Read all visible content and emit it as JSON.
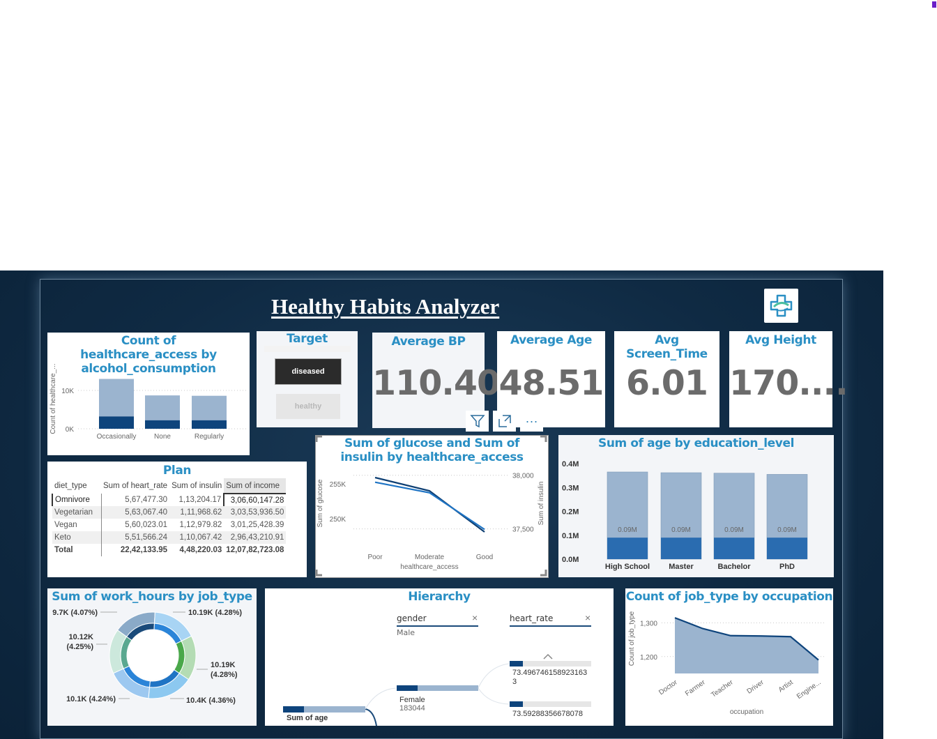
{
  "colors": {
    "accent": "#2a8fc4",
    "bar_light": "#9bb4cf",
    "bar_dark": "#0e447c",
    "bar_mid": "#2a6cb0"
  },
  "dashboard": {
    "title": "Healthy Habits Analyzer",
    "logo_icon": "medical-cross-icon"
  },
  "alcohol_chart": {
    "title": "Count of healthcare_access by alcohol_consumption",
    "y_axis_label": "Count of healthcare_...",
    "y_ticks": [
      "10K",
      "0K"
    ],
    "chart_data": {
      "type": "bar",
      "categories": [
        "Occasionally",
        "None",
        "Regularly"
      ],
      "series": [
        {
          "values": [
            3200,
            2200,
            2200
          ]
        },
        {
          "values": [
            13000,
            8700,
            8600
          ]
        }
      ],
      "ylim": [
        0,
        16000
      ]
    }
  },
  "target_slicer": {
    "title": "Target",
    "options": [
      "diseased",
      "healthy"
    ],
    "selected": "diseased"
  },
  "kpis": [
    {
      "label": "Average BP",
      "value": "110.40"
    },
    {
      "label": "Average Age",
      "value": "48.51"
    },
    {
      "label": "Avg Screen_Time",
      "value": "6.01"
    },
    {
      "label": "Avg Height",
      "value": "170...."
    }
  ],
  "plan_table": {
    "title": "Plan",
    "headers": [
      "diet_type",
      "Sum of heart_rate",
      "Sum of insulin",
      "Sum of income"
    ],
    "rows": [
      [
        "Omnivore",
        "5,67,477.30",
        "1,13,204.17",
        "3,06,60,147.28"
      ],
      [
        "Vegetarian",
        "5,63,067.40",
        "1,11,968.62",
        "3,03,53,936.50"
      ],
      [
        "Vegan",
        "5,60,023.01",
        "1,12,979.82",
        "3,01,25,428.39"
      ],
      [
        "Keto",
        "5,51,566.24",
        "1,10,067.42",
        "2,96,43,210.91"
      ]
    ],
    "total": [
      "Total",
      "22,42,133.95",
      "4,48,220.03",
      "12,07,82,723.08"
    ]
  },
  "visual_header": {
    "filter_icon": "filter-icon",
    "focus_icon": "focus-mode-icon",
    "more_icon": "more-options-icon",
    "more_label": "···"
  },
  "glucose_chart": {
    "title": "Sum of glucose and Sum of insulin by healthcare_access",
    "xlabel": "healthcare_access",
    "ylabel_left": "Sum of glucose",
    "ylabel_right": "Sum of insulin",
    "left_ticks": [
      "255K",
      "250K"
    ],
    "right_ticks": [
      "38,000",
      "37,500"
    ],
    "chart_data": {
      "type": "line",
      "categories": [
        "Poor",
        "Moderate",
        "Good"
      ],
      "series": [
        {
          "name": "Sum of glucose",
          "values": [
            255900,
            254000,
            248100
          ],
          "axis": "left"
        },
        {
          "name": "Sum of insulin",
          "values": [
            37935,
            37837,
            37495
          ],
          "axis": "right"
        }
      ],
      "ylim_left": [
        247000,
        257000
      ],
      "ylim_right": [
        37400,
        38050
      ]
    }
  },
  "education_chart": {
    "title": "Sum of age by education_level",
    "y_ticks": [
      "0.4M",
      "0.3M",
      "0.2M",
      "0.1M",
      "0.0M"
    ],
    "data_labels": [
      "0.09M",
      "0.09M",
      "0.09M",
      "0.09M"
    ],
    "chart_data": {
      "type": "bar",
      "categories": [
        "High School",
        "Master",
        "Bachelor",
        "PhD"
      ],
      "series": [
        {
          "values": [
            0.09,
            0.09,
            0.09,
            0.09
          ]
        },
        {
          "values": [
            0.365,
            0.362,
            0.36,
            0.355
          ]
        }
      ],
      "ylim": [
        0,
        0.4
      ]
    }
  },
  "work_hours_chart": {
    "title": "Sum of work_hours by job_type",
    "labels": [
      "9.7K (4.07%)",
      "10.19K (4.28%)",
      "10.12K (4.25%)",
      "10.19K (4.28%)",
      "10.1K (4.24%)",
      "10.4K (4.36%)"
    ],
    "chart_data": {
      "type": "pie",
      "values": [
        9.7,
        10.19,
        10.19,
        10.4,
        10.1,
        10.12
      ]
    }
  },
  "hierarchy": {
    "title": "Hierarchy",
    "slicer_1": {
      "name": "gender",
      "value": "Male"
    },
    "slicer_2": {
      "name": "heart_rate"
    },
    "root_label": "Sum of age",
    "mid_label": "Female",
    "mid_value": "183044",
    "leaf_1": "73.4967461589231633",
    "leaf_2": "73.59288356678078",
    "up_icon": "chevron-up-icon",
    "clear_icon": "close-icon"
  },
  "occupation_chart": {
    "title": "Count of job_type by occupation",
    "xlabel": "occupation",
    "ylabel": "Count of job_type",
    "y_ticks": [
      "1,300",
      "1,200"
    ],
    "chart_data": {
      "type": "area",
      "categories": [
        "Doctor",
        "Farmer",
        "Teacher",
        "Driver",
        "Artist",
        "Engine..."
      ],
      "values": [
        1315,
        1283,
        1262,
        1261,
        1259,
        1190
      ],
      "ylim": [
        1150,
        1340
      ]
    }
  }
}
